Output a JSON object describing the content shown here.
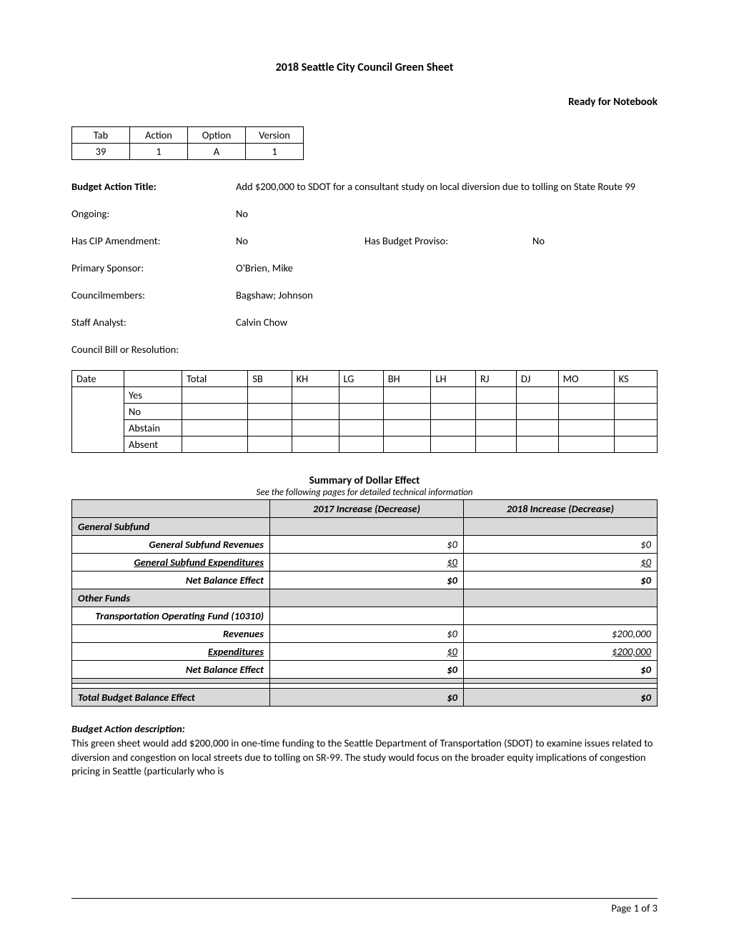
{
  "header": {
    "title": "2018 Seattle City Council Green Sheet",
    "status": "Ready for Notebook"
  },
  "id_table": {
    "headers": [
      "Tab",
      "Action",
      "Option",
      "Version"
    ],
    "values": [
      "39",
      "1",
      "A",
      "1"
    ]
  },
  "fields": {
    "budget_action_title_label": "Budget Action Title:",
    "budget_action_title": "Add $200,000 to SDOT for a consultant study on local diversion due to tolling on State Route 99",
    "ongoing_label": "Ongoing:",
    "ongoing": "No",
    "has_cip_label": "Has CIP Amendment:",
    "has_cip": "No",
    "has_proviso_label": "Has Budget Proviso:",
    "has_proviso": "No",
    "primary_sponsor_label": "Primary Sponsor:",
    "primary_sponsor": "O'Brien, Mike",
    "councilmembers_label": "Councilmembers:",
    "councilmembers": "Bagshaw; Johnson",
    "staff_analyst_label": "Staff Analyst:",
    "staff_analyst": "Calvin Chow",
    "council_bill_label": "Council Bill or Resolution:",
    "council_bill": ""
  },
  "vote_table": {
    "headers": [
      "Date",
      "",
      "Total",
      "SB",
      "KH",
      "LG",
      "BH",
      "LH",
      "RJ",
      "DJ",
      "MO",
      "KS"
    ],
    "rows": [
      "Yes",
      "No",
      "Abstain",
      "Absent"
    ]
  },
  "summary": {
    "title": "Summary of Dollar Effect",
    "subtitle": "See the following pages for detailed technical information",
    "col2017": "2017 Increase (Decrease)",
    "col2018": "2018 Increase (Decrease)",
    "rows": [
      {
        "label": "General Subfund",
        "shade": true,
        "bolditalic": true,
        "v17": "",
        "v18": ""
      },
      {
        "label": "General Subfund Revenues",
        "bolditalic": true,
        "v17": "$0",
        "v18": "$0",
        "italicvals": true
      },
      {
        "label": "General Subfund Expenditures",
        "bolditalic": true,
        "ul": true,
        "v17": "$0",
        "v18": "$0",
        "italicvals": true,
        "ulvals": true
      },
      {
        "label": "Net Balance Effect",
        "bolditalic": true,
        "v17": "$0",
        "v18": "$0",
        "boldvals": true,
        "italicvals": true
      },
      {
        "label": "Other Funds",
        "shade": true,
        "bolditalic": true,
        "v17": "",
        "v18": ""
      },
      {
        "label": "Transportation Operating Fund (10310)",
        "bolditalic": true,
        "v17": "",
        "v18": ""
      },
      {
        "label": "Revenues",
        "bolditalic": true,
        "v17": "$0",
        "v18": "$200,000",
        "italicvals": true
      },
      {
        "label": "Expenditures",
        "bolditalic": true,
        "ul": true,
        "v17": "$0",
        "v18": "$200,000",
        "italicvals": true,
        "ulvals": true
      },
      {
        "label": "Net Balance Effect",
        "bolditalic": true,
        "v17": "$0",
        "v18": "$0",
        "boldvals": true,
        "italicvals": true
      },
      {
        "label": "",
        "shade": true,
        "v17": "",
        "v18": ""
      },
      {
        "label": "",
        "v17": "",
        "v18": ""
      },
      {
        "label": "Total Budget Balance Effect",
        "shade": true,
        "bolditalic": true,
        "v17": "$0",
        "v18": "$0",
        "boldvals": true,
        "italicvals": true,
        "leftalign": true
      }
    ]
  },
  "description": {
    "title": "Budget Action description:",
    "body": "This green sheet would add $200,000 in one-time funding to the Seattle Department of Transportation (SDOT) to examine issues related to diversion and congestion on local streets due to tolling on SR-99. The study would focus on the broader equity implications of congestion pricing in Seattle (particularly who is"
  },
  "footer": {
    "page": "Page 1 of 3"
  }
}
